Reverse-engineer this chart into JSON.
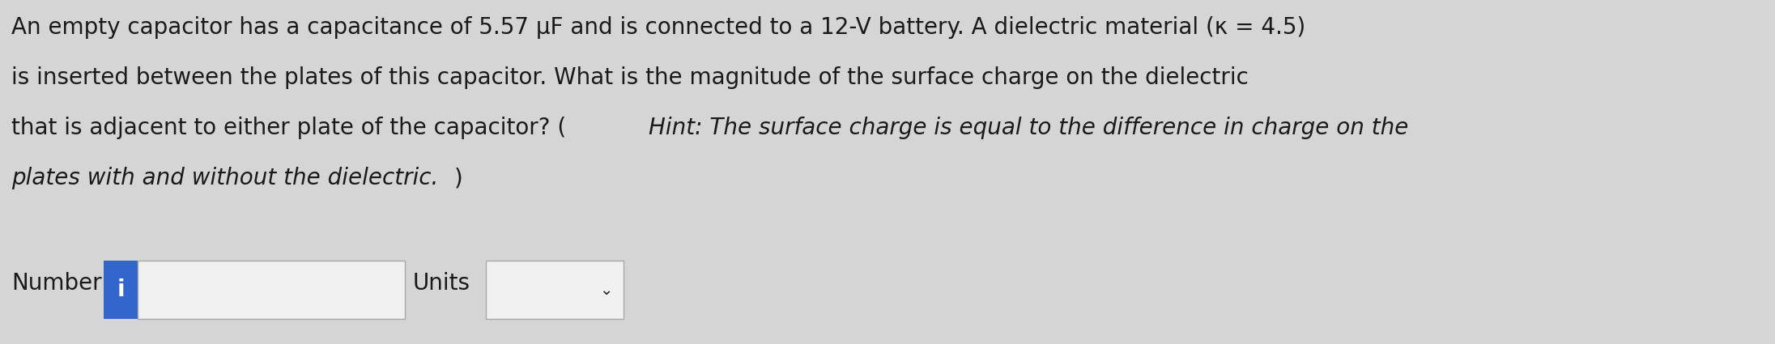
{
  "background_color": "#d5d5d5",
  "text_color": "#1a1a1a",
  "line1": "An empty capacitor has a capacitance of 5.57 μF and is connected to a 12-V battery. A dielectric material (κ = 4.5)",
  "line2": "is inserted between the plates of this capacitor. What is the magnitude of the surface charge on the dielectric",
  "line3_normal": "that is adjacent to either plate of the capacitor? (",
  "line3_italic": "Hint: The surface charge is equal to the difference in charge on the",
  "line4_italic": "plates with and without the dielectric.",
  "line4_normal": ")",
  "label_number": "Number",
  "label_units": "Units",
  "icon_label": "i",
  "bg": "#d5d5d5",
  "box_fill": "#f0f0f0",
  "box_edge": "#aaaaaa",
  "icon_fill": "#3366cc",
  "icon_text": "#ffffff",
  "font_size": 20,
  "fig_width": 21.92,
  "fig_height": 4.25,
  "dpi": 100
}
